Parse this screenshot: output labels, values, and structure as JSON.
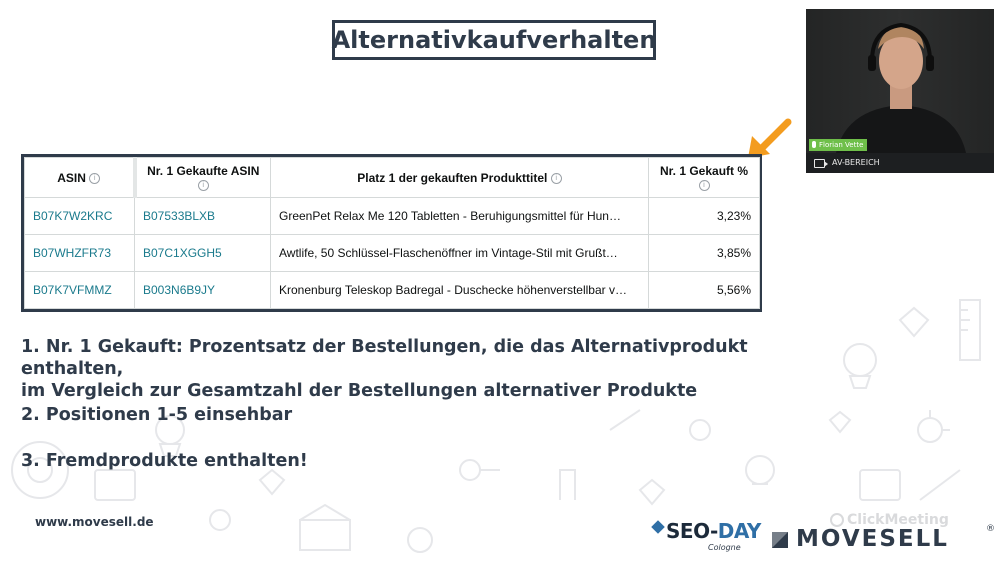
{
  "slide": {
    "title": "Alternativkaufverhalten",
    "website": "www.movesell.de"
  },
  "table": {
    "headers": [
      {
        "label": "ASIN",
        "info": "i"
      },
      {
        "label": "Nr. 1 Gekaufte ASIN",
        "info": "i"
      },
      {
        "label": "Platz 1 der gekauften Produkttitel",
        "info": "i"
      },
      {
        "label": "Nr. 1 Gekauft %",
        "info": "i"
      }
    ],
    "rows": [
      {
        "asin": "B07K7W2KRC",
        "bought_asin": "B07533BLXB",
        "title": "GreenPet Relax Me 120 Tabletten - Beruhigungsmittel für Hun…",
        "percent": "3,23%"
      },
      {
        "asin": "B07WHZFR73",
        "bought_asin": "B07C1XGGH5",
        "title": "Awtlife, 50 Schlüssel-Flaschenöffner im Vintage-Stil mit Grußt…",
        "percent": "3,85%"
      },
      {
        "asin": "B07K7VFMMZ",
        "bought_asin": "B003N6B9JY",
        "title": "Kronenburg Teleskop Badregal - Duschecke höhenverstellbar v…",
        "percent": "5,56%"
      }
    ]
  },
  "notes": {
    "n1_line1": "1. Nr. 1 Gekauft: Prozentsatz der Bestellungen, die das Alternativprodukt enthalten,",
    "n1_line2": "im Vergleich zur Gesamtzahl der Bestellungen alternativer Produkte",
    "n2": "2. Positionen 1-5 einsehbar",
    "n3": "3. Fremdprodukte enthalten!"
  },
  "webcam": {
    "participant_name": "Florian Vette",
    "footer_label": "AV-BEREICH"
  },
  "logos": {
    "seo_day_seo": "SEO-",
    "seo_day_day": "DAY",
    "seo_day_sub": "Cologne",
    "movesell": "MOVESELL",
    "movesell_reg": "®",
    "clickmeeting": "ClickMeeting"
  },
  "colors": {
    "accent_arrow": "#f39c1f",
    "frame_dark": "#2f3b4a",
    "asin_link": "#1a7a8c",
    "cam_name_bg": "#6fbf4a"
  }
}
